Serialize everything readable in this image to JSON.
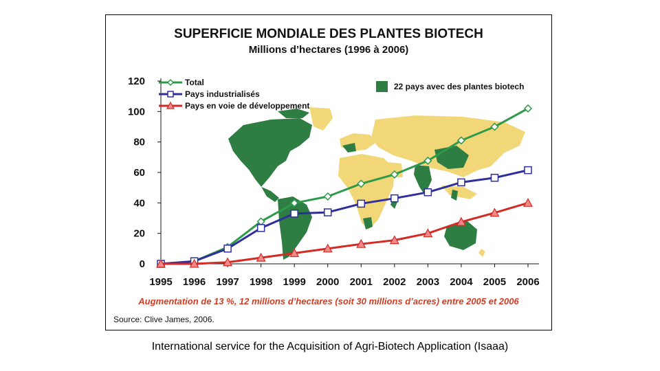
{
  "credit": "International service for the Acquisition of Agri-Biotech Application (Isaaa)",
  "chart_data": {
    "type": "line",
    "title": "SUPERFICIE MONDIALE DES PLANTES BIOTECH",
    "subtitle": "Millions d’hectares (1996 à 2006)",
    "x": [
      "1995",
      "1996",
      "1997",
      "1998",
      "1999",
      "2000",
      "2001",
      "2002",
      "2003",
      "2004",
      "2005",
      "2006"
    ],
    "yticks": [
      "0",
      "20",
      "40",
      "60",
      "80",
      "100",
      "120"
    ],
    "ylim": [
      0,
      120
    ],
    "series": [
      {
        "name": "Total",
        "color": "#2e9a4a",
        "marker": "diamond",
        "values": [
          0,
          1.7,
          11,
          27.8,
          39.9,
          44.2,
          52.6,
          58.7,
          67.7,
          81,
          90,
          102
        ]
      },
      {
        "name": "Pays industrialisés",
        "color": "#2f2f9c",
        "marker": "square",
        "values": [
          0,
          1.7,
          10,
          23.5,
          33,
          33.8,
          39.5,
          43,
          47,
          53.5,
          56.5,
          61.5
        ]
      },
      {
        "name": "Pays en voie de développement",
        "color": "#d32a23",
        "marker": "triangle",
        "values": [
          0,
          0,
          1,
          4,
          7,
          10,
          13,
          15.5,
          20,
          27.5,
          33.5,
          40
        ]
      }
    ],
    "map_legend": "22 pays avec des plantes biotech",
    "map_legend_color": "#2e7d43",
    "annotation": "Augmentation de 13 %, 12 millions d’hectares (soit 30 millions d’acres) entre 2005 et 2006",
    "source": "Source: Clive James, 2006.",
    "legend_placement": "top-left",
    "grid": false
  }
}
